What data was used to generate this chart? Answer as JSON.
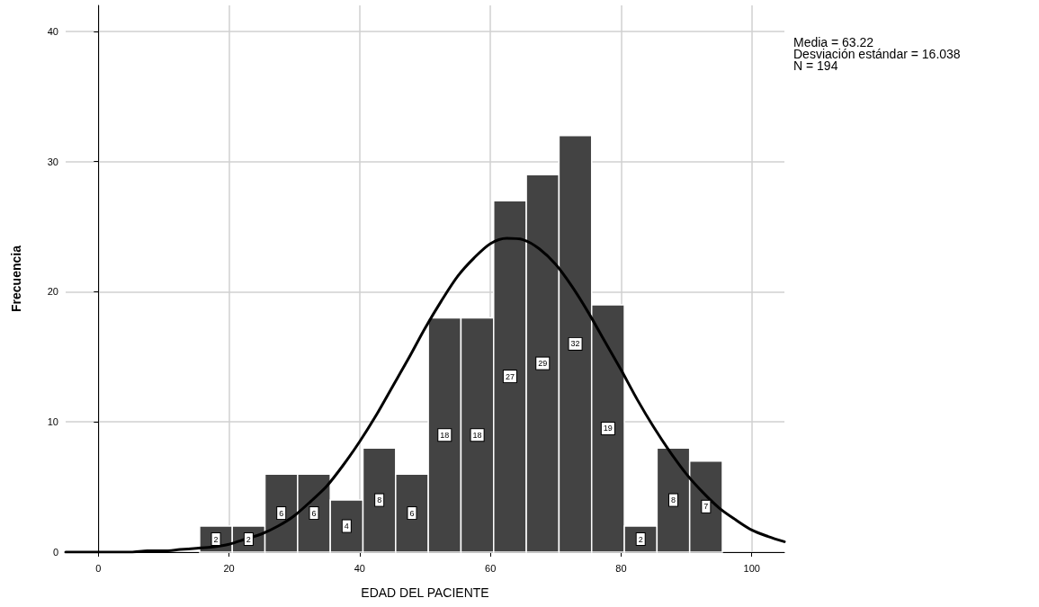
{
  "chart_data": {
    "type": "histogram",
    "xlabel": "EDAD DEL PACIENTE",
    "ylabel": "Frecuencia",
    "bins": [
      15.5,
      20.5,
      25.5,
      30.5,
      35.5,
      40.5,
      45.5,
      50.5,
      55.5,
      60.5,
      65.5,
      70.5,
      75.5,
      80.5,
      85.5,
      90.5,
      95.5
    ],
    "values": [
      2,
      2,
      6,
      6,
      4,
      8,
      6,
      18,
      18,
      27,
      29,
      32,
      19,
      2,
      8,
      7
    ],
    "value_labels": [
      "2",
      "2",
      "6",
      "6",
      "4",
      "8",
      "6",
      "18",
      "18",
      "27",
      "29",
      "32",
      "19",
      "2",
      "8",
      "7"
    ],
    "color": "#434343",
    "series": [
      {
        "type": "line",
        "color": "#000000",
        "x": [
          -5,
          0,
          5,
          7.5,
          10,
          12.5,
          15,
          17.5,
          20,
          22.5,
          25,
          27.5,
          30,
          32.5,
          35,
          37.5,
          40,
          42.5,
          45,
          47.5,
          50,
          52.5,
          55,
          57.5,
          60,
          62.5,
          65,
          67.5,
          70,
          72.5,
          75,
          77.5,
          80,
          82.5,
          85,
          87.5,
          90,
          92.5,
          95,
          97.5,
          100,
          102.5,
          105
        ],
        "values": [
          0.0,
          0.0,
          0.0,
          0.1,
          0.1,
          0.2,
          0.3,
          0.4,
          0.6,
          1.0,
          1.4,
          2.0,
          2.8,
          3.9,
          5.1,
          6.7,
          8.5,
          10.5,
          12.7,
          14.9,
          17.2,
          19.3,
          21.2,
          22.6,
          23.7,
          24.1,
          24.0,
          23.3,
          22.1,
          20.4,
          18.4,
          16.2,
          14.0,
          11.7,
          9.6,
          7.7,
          6.0,
          4.6,
          3.4,
          2.5,
          1.7,
          1.2,
          0.8
        ]
      }
    ],
    "xlim": [
      -5,
      105
    ],
    "xticks": [
      0,
      20,
      40,
      60,
      80,
      100
    ],
    "ylim": [
      0,
      42
    ],
    "yticks": [
      0,
      10,
      20,
      30,
      40
    ],
    "grid": true,
    "annotations": [
      "Media = 63.22",
      "Desviación estándar = 16.038",
      "N = 194"
    ]
  }
}
